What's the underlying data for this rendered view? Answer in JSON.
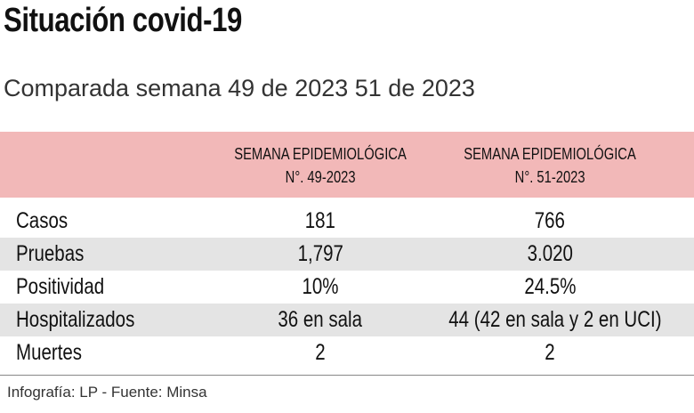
{
  "header": {
    "title": "Situación covid-19",
    "subtitle": "Comparada semana 49 de 2023 51 de 2023"
  },
  "table": {
    "columns": [
      [
        "SEMANA EPIDEMIOLÓGICA",
        "N°. 49-2023"
      ],
      [
        "SEMANA EPIDEMIOLÓGICA",
        "N°. 51-2023"
      ]
    ],
    "rows": [
      [
        "Casos",
        "181",
        "766"
      ],
      [
        "Pruebas",
        "1,797",
        "3.020"
      ],
      [
        "Positividad",
        "10%",
        "24.5%"
      ],
      [
        "Hospitalizados",
        "36 en sala",
        "44 (42 en sala y 2 en UCI)"
      ],
      [
        "Muertes",
        "2",
        "2"
      ]
    ]
  },
  "footer": {
    "source": "Infografía: LP - Fuente: Minsa"
  }
}
